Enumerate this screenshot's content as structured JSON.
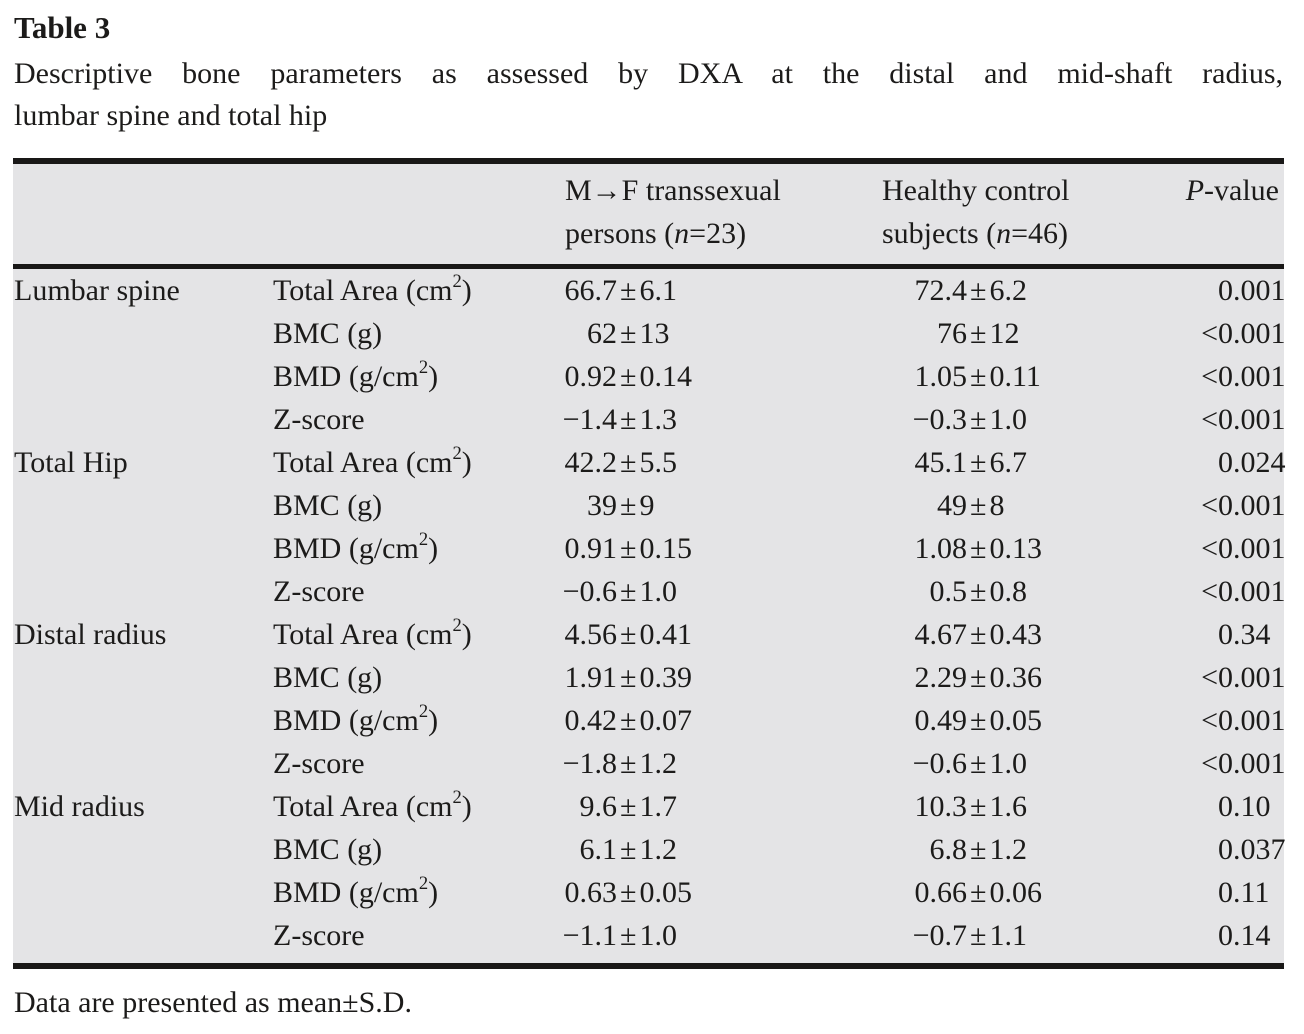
{
  "title": "Table 3",
  "caption_line1": "Descriptive bone parameters as assessed by DXA at the distal and mid-shaft radius,",
  "caption_line2": "lumbar spine and total hip",
  "columns": {
    "group1": {
      "line1": "M→F transsexual",
      "line2_parts": [
        "persons (",
        "n",
        "=23)"
      ]
    },
    "group2": {
      "line1": "Healthy control",
      "line2_parts": [
        "subjects (",
        "n",
        "=46)"
      ]
    },
    "pvalue_parts": [
      "",
      "P",
      "-value"
    ]
  },
  "symbols": {
    "plus_minus": "±"
  },
  "sections": [
    {
      "region": "Lumbar spine",
      "rows": [
        {
          "param_parts": [
            "Total Area (cm",
            "2",
            ")"
          ],
          "mf": {
            "mean": "66.7",
            "sd": "6.1"
          },
          "hc": {
            "mean": "72.4",
            "sd": "6.2"
          },
          "p": "0.001"
        },
        {
          "param_parts": [
            "BMC (g)"
          ],
          "mf": {
            "mean": "62",
            "sd": "13"
          },
          "hc": {
            "mean": "76",
            "sd": "12"
          },
          "p": "<0.001"
        },
        {
          "param_parts": [
            "BMD (g/cm",
            "2",
            ")"
          ],
          "mf": {
            "mean": "0.92",
            "sd": "0.14"
          },
          "hc": {
            "mean": "1.05",
            "sd": "0.11"
          },
          "p": "<0.001"
        },
        {
          "param_parts": [
            "Z-score"
          ],
          "mf": {
            "mean": "−1.4",
            "sd": "1.3"
          },
          "hc": {
            "mean": "−0.3",
            "sd": "1.0"
          },
          "p": "<0.001"
        }
      ]
    },
    {
      "region": "Total Hip",
      "rows": [
        {
          "param_parts": [
            "Total Area (cm",
            "2",
            ")"
          ],
          "mf": {
            "mean": "42.2",
            "sd": "5.5"
          },
          "hc": {
            "mean": "45.1",
            "sd": "6.7"
          },
          "p": "0.024"
        },
        {
          "param_parts": [
            "BMC (g)"
          ],
          "mf": {
            "mean": "39",
            "sd": "9"
          },
          "hc": {
            "mean": "49",
            "sd": "8"
          },
          "p": "<0.001"
        },
        {
          "param_parts": [
            "BMD (g/cm",
            "2",
            ")"
          ],
          "mf": {
            "mean": "0.91",
            "sd": "0.15"
          },
          "hc": {
            "mean": "1.08",
            "sd": "0.13"
          },
          "p": "<0.001"
        },
        {
          "param_parts": [
            "Z-score"
          ],
          "mf": {
            "mean": "−0.6",
            "sd": "1.0"
          },
          "hc": {
            "mean": "0.5",
            "sd": "0.8"
          },
          "p": "<0.001"
        }
      ]
    },
    {
      "region": "Distal radius",
      "rows": [
        {
          "param_parts": [
            "Total Area (cm",
            "2",
            ")"
          ],
          "mf": {
            "mean": "4.56",
            "sd": "0.41"
          },
          "hc": {
            "mean": "4.67",
            "sd": "0.43"
          },
          "p": "0.34"
        },
        {
          "param_parts": [
            "BMC (g)"
          ],
          "mf": {
            "mean": "1.91",
            "sd": "0.39"
          },
          "hc": {
            "mean": "2.29",
            "sd": "0.36"
          },
          "p": "<0.001"
        },
        {
          "param_parts": [
            "BMD (g/cm",
            "2",
            ")"
          ],
          "mf": {
            "mean": "0.42",
            "sd": "0.07"
          },
          "hc": {
            "mean": "0.49",
            "sd": "0.05"
          },
          "p": "<0.001"
        },
        {
          "param_parts": [
            "Z-score"
          ],
          "mf": {
            "mean": "−1.8",
            "sd": "1.2"
          },
          "hc": {
            "mean": "−0.6",
            "sd": "1.0"
          },
          "p": "<0.001"
        }
      ]
    },
    {
      "region": "Mid radius",
      "rows": [
        {
          "param_parts": [
            "Total Area (cm",
            "2",
            ")"
          ],
          "mf": {
            "mean": "9.6",
            "sd": "1.7"
          },
          "hc": {
            "mean": "10.3",
            "sd": "1.6"
          },
          "p": "0.10"
        },
        {
          "param_parts": [
            "BMC (g)"
          ],
          "mf": {
            "mean": "6.1",
            "sd": "1.2"
          },
          "hc": {
            "mean": "6.8",
            "sd": "1.2"
          },
          "p": "0.037"
        },
        {
          "param_parts": [
            "BMD (g/cm",
            "2",
            ")"
          ],
          "mf": {
            "mean": "0.63",
            "sd": "0.05"
          },
          "hc": {
            "mean": "0.66",
            "sd": "0.06"
          },
          "p": "0.11"
        },
        {
          "param_parts": [
            "Z-score"
          ],
          "mf": {
            "mean": "−1.1",
            "sd": "1.0"
          },
          "hc": {
            "mean": "−0.7",
            "sd": "1.1"
          },
          "p": "0.14"
        }
      ]
    }
  ],
  "footnote": "Data are presented as mean±S.D.",
  "colors": {
    "table_background": "#e4e4e6",
    "rule": "#191817",
    "text": "#1c1b1a",
    "page_background": "#ffffff"
  }
}
